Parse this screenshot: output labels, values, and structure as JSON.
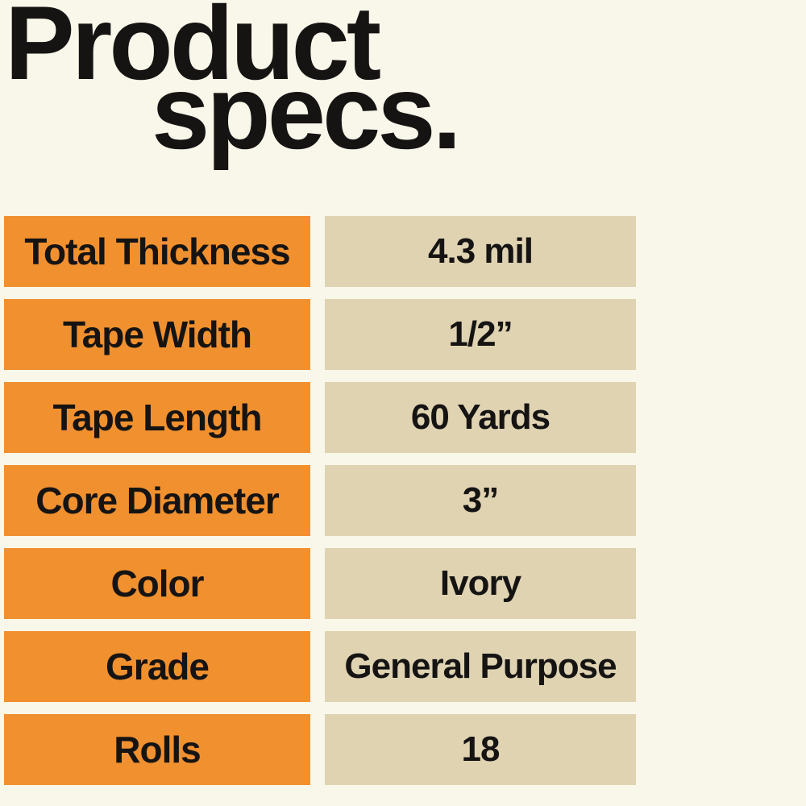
{
  "colors": {
    "background": "#F9F7E9",
    "label_bg": "#F0902F",
    "value_bg": "#DFD3B2",
    "text": "#161413"
  },
  "title": {
    "line1": "Product",
    "line2": "specs."
  },
  "table": {
    "rows": [
      {
        "label": "Total Thickness",
        "value": "4.3 mil"
      },
      {
        "label": "Tape Width",
        "value": "1/2”"
      },
      {
        "label": "Tape Length",
        "value": "60 Yards"
      },
      {
        "label": "Core Diameter",
        "value": "3”"
      },
      {
        "label": "Color",
        "value": "Ivory"
      },
      {
        "label": "Grade",
        "value": "General Purpose"
      },
      {
        "label": "Rolls",
        "value": "18"
      }
    ]
  }
}
